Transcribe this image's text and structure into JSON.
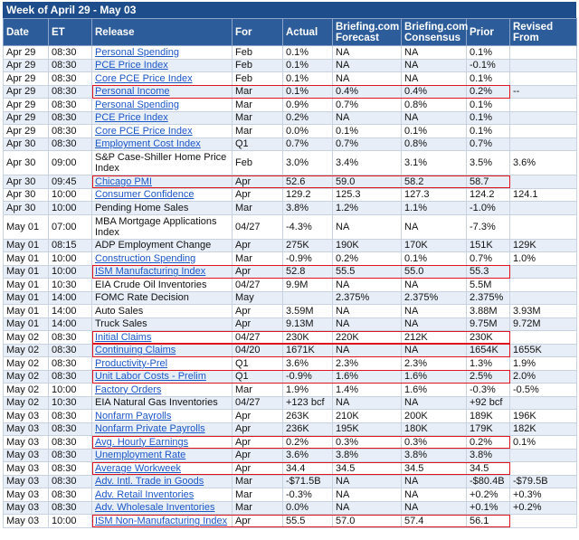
{
  "week_title": "Week of April 29 - May 03",
  "columns": {
    "date": "Date",
    "et": "ET",
    "release": "Release",
    "for": "For",
    "actual": "Actual",
    "forecast": "Briefing.com Forecast",
    "consensus": "Briefing.com Consensus",
    "prior": "Prior",
    "revised": "Revised From"
  },
  "highlight_color": "#e0141e",
  "rows": [
    {
      "date": "Apr 29",
      "et": "08:30",
      "release": "Personal Spending",
      "for": "Feb",
      "actual": "0.1%",
      "forecast": "NA",
      "consensus": "NA",
      "prior": "0.1%",
      "revised": "",
      "link": true,
      "highlight": false
    },
    {
      "date": "Apr 29",
      "et": "08:30",
      "release": "PCE Price Index",
      "for": "Feb",
      "actual": "0.1%",
      "forecast": "NA",
      "consensus": "NA",
      "prior": "-0.1%",
      "revised": "",
      "link": true,
      "highlight": false
    },
    {
      "date": "Apr 29",
      "et": "08:30",
      "release": "Core PCE Price Index",
      "for": "Feb",
      "actual": "0.1%",
      "forecast": "NA",
      "consensus": "NA",
      "prior": "0.1%",
      "revised": "",
      "link": true,
      "highlight": false
    },
    {
      "date": "Apr 29",
      "et": "08:30",
      "release": "Personal Income",
      "for": "Mar",
      "actual": "0.1%",
      "forecast": "0.4%",
      "consensus": "0.4%",
      "prior": "0.2%",
      "revised": "--",
      "link": true,
      "highlight": true
    },
    {
      "date": "Apr 29",
      "et": "08:30",
      "release": "Personal Spending",
      "for": "Mar",
      "actual": "0.9%",
      "forecast": "0.7%",
      "consensus": "0.8%",
      "prior": "0.1%",
      "revised": "",
      "link": true,
      "highlight": false
    },
    {
      "date": "Apr 29",
      "et": "08:30",
      "release": "PCE Price Index",
      "for": "Mar",
      "actual": "0.2%",
      "forecast": "NA",
      "consensus": "NA",
      "prior": "0.1%",
      "revised": "",
      "link": true,
      "highlight": false
    },
    {
      "date": "Apr 29",
      "et": "08:30",
      "release": "Core PCE Price Index",
      "for": "Mar",
      "actual": "0.0%",
      "forecast": "0.1%",
      "consensus": "0.1%",
      "prior": "0.1%",
      "revised": "",
      "link": true,
      "highlight": false
    },
    {
      "date": "Apr 30",
      "et": "08:30",
      "release": "Employment Cost Index",
      "for": "Q1",
      "actual": "0.7%",
      "forecast": "0.7%",
      "consensus": "0.8%",
      "prior": "0.7%",
      "revised": "",
      "link": true,
      "highlight": false
    },
    {
      "date": "Apr 30",
      "et": "09:00",
      "release": "S&P Case-Shiller Home Price Index",
      "for": "Feb",
      "actual": "3.0%",
      "forecast": "3.4%",
      "consensus": "3.1%",
      "prior": "3.5%",
      "revised": "3.6%",
      "link": false,
      "highlight": false,
      "double": true
    },
    {
      "date": "Apr 30",
      "et": "09:45",
      "release": "Chicago PMI",
      "for": "Apr",
      "actual": "52.6",
      "forecast": "59.0",
      "consensus": "58.2",
      "prior": "58.7",
      "revised": "",
      "link": true,
      "highlight": true
    },
    {
      "date": "Apr 30",
      "et": "10:00",
      "release": "Consumer Confidence",
      "for": "Apr",
      "actual": "129.2",
      "forecast": "125.3",
      "consensus": "127.3",
      "prior": "124.2",
      "revised": "124.1",
      "link": true,
      "highlight": false
    },
    {
      "date": "Apr 30",
      "et": "10:00",
      "release": "Pending Home Sales",
      "for": "Mar",
      "actual": "3.8%",
      "forecast": "1.2%",
      "consensus": "1.1%",
      "prior": "-1.0%",
      "revised": "",
      "link": false,
      "highlight": false
    },
    {
      "date": "May 01",
      "et": "07:00",
      "release": "MBA Mortgage Applications Index",
      "for": "04/27",
      "actual": "-4.3%",
      "forecast": "NA",
      "consensus": "NA",
      "prior": "-7.3%",
      "revised": "",
      "link": false,
      "highlight": false,
      "double": true
    },
    {
      "date": "May 01",
      "et": "08:15",
      "release": "ADP Employment Change",
      "for": "Apr",
      "actual": "275K",
      "forecast": "190K",
      "consensus": "170K",
      "prior": "151K",
      "revised": "129K",
      "link": false,
      "highlight": false
    },
    {
      "date": "May 01",
      "et": "10:00",
      "release": "Construction Spending",
      "for": "Mar",
      "actual": "-0.9%",
      "forecast": "0.2%",
      "consensus": "0.1%",
      "prior": "0.7%",
      "revised": "1.0%",
      "link": true,
      "highlight": false
    },
    {
      "date": "May 01",
      "et": "10:00",
      "release": "ISM Manufacturing Index",
      "for": "Apr",
      "actual": "52.8",
      "forecast": "55.5",
      "consensus": "55.0",
      "prior": "55.3",
      "revised": "",
      "link": true,
      "highlight": true
    },
    {
      "date": "May 01",
      "et": "10:30",
      "release": "EIA Crude Oil Inventories",
      "for": "04/27",
      "actual": "9.9M",
      "forecast": "NA",
      "consensus": "NA",
      "prior": "5.5M",
      "revised": "",
      "link": false,
      "highlight": false
    },
    {
      "date": "May 01",
      "et": "14:00",
      "release": "FOMC Rate Decision",
      "for": "May",
      "actual": "",
      "forecast": "2.375%",
      "consensus": "2.375%",
      "prior": "2.375%",
      "revised": "",
      "link": false,
      "highlight": false
    },
    {
      "date": "May 01",
      "et": "14:00",
      "release": "Auto Sales",
      "for": "Apr",
      "actual": "3.59M",
      "forecast": "NA",
      "consensus": "NA",
      "prior": "3.88M",
      "revised": "3.93M",
      "link": false,
      "highlight": false
    },
    {
      "date": "May 01",
      "et": "14:00",
      "release": "Truck Sales",
      "for": "Apr",
      "actual": "9.13M",
      "forecast": "NA",
      "consensus": "NA",
      "prior": "9.75M",
      "revised": "9.72M",
      "link": false,
      "highlight": false
    },
    {
      "date": "May 02",
      "et": "08:30",
      "release": "Initial Claims",
      "for": "04/27",
      "actual": "230K",
      "forecast": "220K",
      "consensus": "212K",
      "prior": "230K",
      "revised": "",
      "link": true,
      "highlight": true
    },
    {
      "date": "May 02",
      "et": "08:30",
      "release": "Continuing Claims",
      "for": "04/20",
      "actual": "1671K",
      "forecast": "NA",
      "consensus": "NA",
      "prior": "1654K",
      "revised": "1655K",
      "link": true,
      "highlight": true
    },
    {
      "date": "May 02",
      "et": "08:30",
      "release": "Productivity-Prel",
      "for": "Q1",
      "actual": "3.6%",
      "forecast": "2.3%",
      "consensus": "2.3%",
      "prior": "1.3%",
      "revised": "1.9%",
      "link": true,
      "highlight": false
    },
    {
      "date": "May 02",
      "et": "08:30",
      "release": "Unit Labor Costs - Prelim",
      "for": "Q1",
      "actual": "-0.9%",
      "forecast": "1.6%",
      "consensus": "1.6%",
      "prior": "2.5%",
      "revised": "2.0%",
      "link": true,
      "highlight": true
    },
    {
      "date": "May 02",
      "et": "10:00",
      "release": "Factory Orders",
      "for": "Mar",
      "actual": "1.9%",
      "forecast": "1.4%",
      "consensus": "1.6%",
      "prior": "-0.3%",
      "revised": "-0.5%",
      "link": true,
      "highlight": false
    },
    {
      "date": "May 02",
      "et": "10:30",
      "release": "EIA Natural Gas Inventories",
      "for": "04/27",
      "actual": "+123 bcf",
      "forecast": "NA",
      "consensus": "NA",
      "prior": "+92 bcf",
      "revised": "",
      "link": false,
      "highlight": false
    },
    {
      "date": "May 03",
      "et": "08:30",
      "release": "Nonfarm Payrolls",
      "for": "Apr",
      "actual": "263K",
      "forecast": "210K",
      "consensus": "200K",
      "prior": "189K",
      "revised": "196K",
      "link": true,
      "highlight": false
    },
    {
      "date": "May 03",
      "et": "08:30",
      "release": "Nonfarm Private Payrolls",
      "for": "Apr",
      "actual": "236K",
      "forecast": "195K",
      "consensus": "180K",
      "prior": "179K",
      "revised": "182K",
      "link": true,
      "highlight": false
    },
    {
      "date": "May 03",
      "et": "08:30",
      "release": "Avg. Hourly Earnings",
      "for": "Apr",
      "actual": "0.2%",
      "forecast": "0.3%",
      "consensus": "0.3%",
      "prior": "0.2%",
      "revised": "0.1%",
      "link": true,
      "highlight": true
    },
    {
      "date": "May 03",
      "et": "08:30",
      "release": "Unemployment Rate",
      "for": "Apr",
      "actual": "3.6%",
      "forecast": "3.8%",
      "consensus": "3.8%",
      "prior": "3.8%",
      "revised": "",
      "link": true,
      "highlight": false
    },
    {
      "date": "May 03",
      "et": "08:30",
      "release": "Average Workweek",
      "for": "Apr",
      "actual": "34.4",
      "forecast": "34.5",
      "consensus": "34.5",
      "prior": "34.5",
      "revised": "",
      "link": true,
      "highlight": true
    },
    {
      "date": "May 03",
      "et": "08:30",
      "release": "Adv. Intl. Trade in Goods",
      "for": "Mar",
      "actual": "-$71.5B",
      "forecast": "NA",
      "consensus": "NA",
      "prior": "-$80.4B",
      "revised": "-$79.5B",
      "link": true,
      "highlight": false
    },
    {
      "date": "May 03",
      "et": "08:30",
      "release": "Adv. Retail Inventories",
      "for": "Mar",
      "actual": "-0.3%",
      "forecast": "NA",
      "consensus": "NA",
      "prior": "+0.2%",
      "revised": "+0.3%",
      "link": true,
      "highlight": false
    },
    {
      "date": "May 03",
      "et": "08:30",
      "release": "Adv. Wholesale Inventories",
      "for": "Mar",
      "actual": "0.0%",
      "forecast": "NA",
      "consensus": "NA",
      "prior": "+0.1%",
      "revised": "+0.2%",
      "link": true,
      "highlight": false
    },
    {
      "date": "May 03",
      "et": "10:00",
      "release": "ISM Non-Manufacturing Index",
      "for": "Apr",
      "actual": "55.5",
      "forecast": "57.0",
      "consensus": "57.4",
      "prior": "56.1",
      "revised": "",
      "link": true,
      "highlight": true
    }
  ]
}
